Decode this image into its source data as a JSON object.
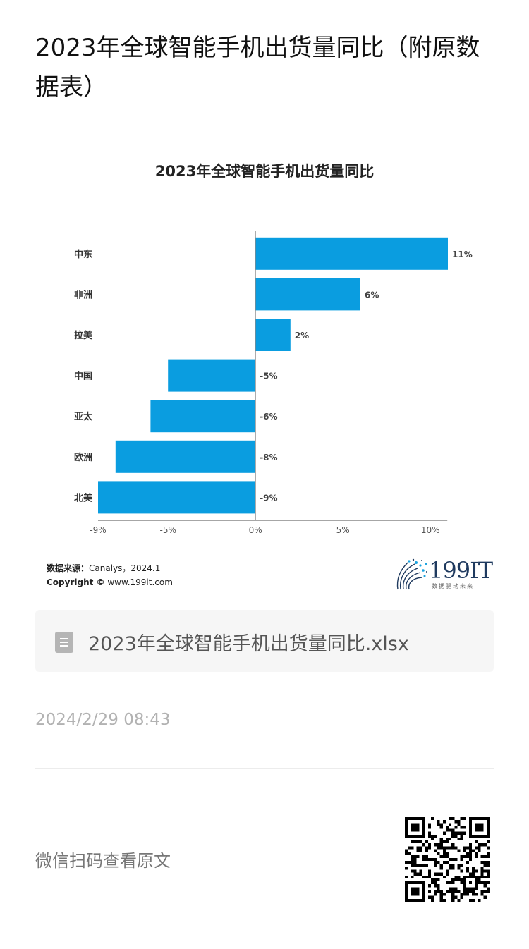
{
  "article": {
    "title": "2023年全球智能手机出货量同比（附原数据表）"
  },
  "chart_data": {
    "type": "bar",
    "orientation": "horizontal",
    "title": "2023年全球智能手机出货量同比",
    "categories": [
      "中东",
      "非洲",
      "拉美",
      "中国",
      "亚太",
      "欧洲",
      "北美"
    ],
    "values": [
      11,
      6,
      2,
      -5,
      -6,
      -8,
      -9
    ],
    "value_labels": [
      "11%",
      "6%",
      "2%",
      "-5%",
      "-6%",
      "-8%",
      "-9%"
    ],
    "xlim": [
      -9,
      11
    ],
    "x_ticks": [
      -9,
      -5,
      0,
      5,
      10
    ],
    "x_tick_labels": [
      "-9%",
      "-5%",
      "0%",
      "5%",
      "10%"
    ],
    "bar_color": "#0a9de0",
    "grid": false,
    "xlabel": "",
    "ylabel": ""
  },
  "chart_footer": {
    "source_label": "数据来源：",
    "source_value": "Canalys，2024.1",
    "copyright_label": "Copyright ©",
    "copyright_value": " www.199it.com"
  },
  "brand": {
    "logo_text": "199IT",
    "slogan": "数据驱动未来"
  },
  "attachment": {
    "file_name": "2023年全球智能手机出货量同比.xlsx",
    "icon": "spreadsheet-file-icon"
  },
  "post": {
    "date": "2024/2/29 08:43"
  },
  "footer": {
    "scan_text": "微信扫码查看原文",
    "qr_icon": "qr-code-icon"
  }
}
